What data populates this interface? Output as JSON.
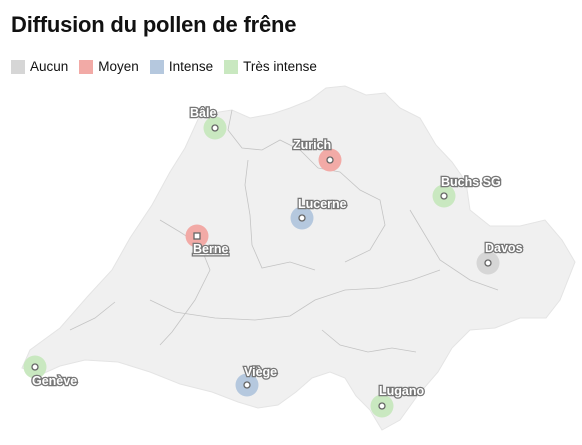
{
  "title": "Diffusion du pollen de frêne",
  "colors": {
    "aucun": "#d6d6d6",
    "moyen": "#f2aaa6",
    "intense": "#b5c8de",
    "tres_intense": "#c9e8c0",
    "land": "#f0f0f0",
    "border": "#bdbdbd"
  },
  "legend": [
    {
      "label": "Aucun",
      "color": "#d6d6d6"
    },
    {
      "label": "Moyen",
      "color": "#f2aaa6"
    },
    {
      "label": "Intense",
      "color": "#b5c8de"
    },
    {
      "label": "Très intense",
      "color": "#c9e8c0"
    }
  ],
  "cities": [
    {
      "name": "Bâle",
      "level": "Très intense",
      "color": "#c9e8c0"
    },
    {
      "name": "Zurich",
      "level": "Moyen",
      "color": "#f2aaa6"
    },
    {
      "name": "Buchs SG",
      "level": "Très intense",
      "color": "#c9e8c0"
    },
    {
      "name": "Lucerne",
      "level": "Intense",
      "color": "#b5c8de"
    },
    {
      "name": "Berne",
      "level": "Moyen",
      "color": "#f2aaa6"
    },
    {
      "name": "Davos",
      "level": "Aucun",
      "color": "#d6d6d6"
    },
    {
      "name": "Genève",
      "level": "Très intense",
      "color": "#c9e8c0"
    },
    {
      "name": "Viège",
      "level": "Intense",
      "color": "#b5c8de"
    },
    {
      "name": "Lugano",
      "level": "Très intense",
      "color": "#c9e8c0"
    }
  ]
}
